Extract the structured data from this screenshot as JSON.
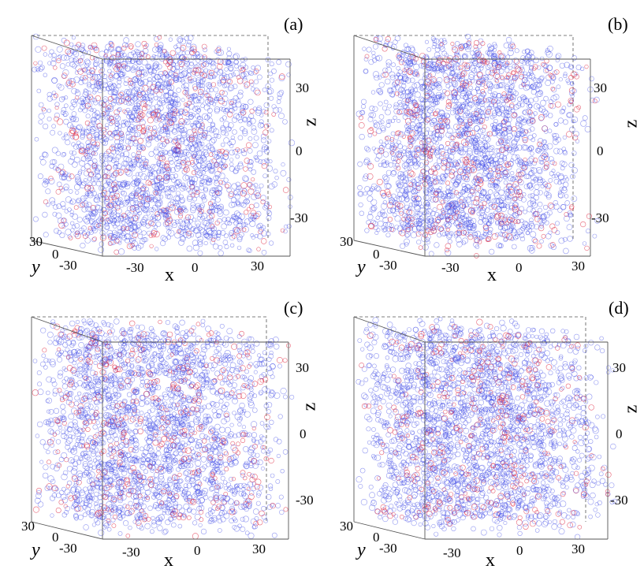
{
  "figure": {
    "panels": [
      {
        "label": "(a)"
      },
      {
        "label": "(b)"
      },
      {
        "label": "(c)"
      },
      {
        "label": "(d)"
      }
    ],
    "axes": {
      "x_label": "x",
      "y_label": "y",
      "z_label": "z",
      "x_ticks": [
        "-30",
        "0",
        "30"
      ],
      "y_ticks": [
        "30",
        "0",
        "-30"
      ],
      "z_ticks": [
        "30",
        "0",
        "-30"
      ]
    },
    "colors": {
      "particle_primary": "#3b46e6",
      "particle_secondary": "#e0324a",
      "box_edge": "#555555"
    }
  }
}
